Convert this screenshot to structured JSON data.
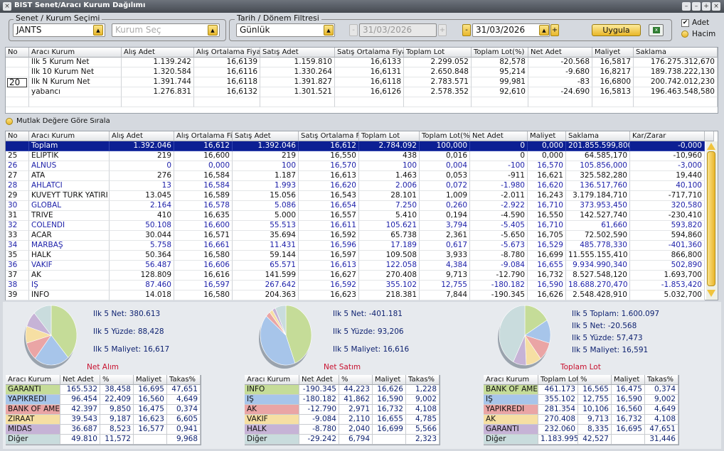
{
  "window": {
    "title": "BIST Senet/Aracı Kurum Dağılımı"
  },
  "filters": {
    "stock_group": "Senet / Kurum Seçimi",
    "stock": "JANTS",
    "broker_placeholder": "Kurum Seç",
    "date_group": "Tarih / Dönem Filtresi",
    "period": "Günlük",
    "start_date": "31/03/2026",
    "end_date": "31/03/2026",
    "apply": "Uygula",
    "mode_options": [
      "Adet",
      "Hacim"
    ]
  },
  "summary_table": {
    "headers": [
      "No",
      "Aracı Kurum",
      "Alış Adet",
      "Alış Ortalama Fiyat",
      "Satış Adet",
      "Satış Ortalama Fiyat",
      "Toplam Lot",
      "Toplam Lot(%)",
      "Net Adet",
      "Maliyet",
      "Saklama"
    ],
    "n_value": "20",
    "rows": [
      [
        "İlk 5 Kurum Net",
        "1.139.242",
        "16,6139",
        "1.159.810",
        "16,6133",
        "2.299.052",
        "82,578",
        "-20.568",
        "16,5817",
        "176.275.312,670"
      ],
      [
        "İlk 10 Kurum Net",
        "1.320.584",
        "16,6116",
        "1.330.264",
        "16,6131",
        "2.650.848",
        "95,214",
        "-9.680",
        "16,8217",
        "189.738.222,130"
      ],
      [
        "İlk N Kurum Net",
        "1.391.744",
        "16,6118",
        "1.391.827",
        "16,6118",
        "2.783.571",
        "99,981",
        "-83",
        "16,6800",
        "200.742.012,230"
      ],
      [
        "yabancı",
        "1.276.831",
        "16,6132",
        "1.301.521",
        "16,6126",
        "2.578.352",
        "92,610",
        "-24.690",
        "16,5813",
        "196.463.548,580"
      ]
    ]
  },
  "sort_option": "Mutlak Değere Göre Sırala",
  "broker_table": {
    "headers": [
      "No",
      "Aracı Kurum",
      "Alış Adet",
      "Alış Ortalama Fiy",
      "Satış Adet",
      "Satış Ortalama Fi",
      "Toplam Lot",
      "Toplam Lot(%",
      "Net Adet",
      "Maliyet",
      "Saklama",
      "Kar/Zarar"
    ],
    "rows": [
      [
        null,
        "Toplam",
        "1.392.046",
        "16,612",
        "1.392.046",
        "16,612",
        "2.784.092",
        "100,000",
        "0",
        "0,000",
        "201.855.599,800",
        "-0,000"
      ],
      [
        "25",
        "ELİPTİK",
        "219",
        "16,600",
        "219",
        "16,550",
        "438",
        "0,016",
        "0",
        "0,000",
        "64.585,170",
        "-10,960"
      ],
      [
        "26",
        "ALNUS",
        "0",
        "0,000",
        "100",
        "16,570",
        "100",
        "0,004",
        "-100",
        "16,570",
        "105.856,000",
        "-3,000"
      ],
      [
        "27",
        "ATA",
        "276",
        "16,584",
        "1.187",
        "16,613",
        "1.463",
        "0,053",
        "-911",
        "16,621",
        "325.582,280",
        "19,440"
      ],
      [
        "28",
        "AHLATCI",
        "13",
        "16,584",
        "1.993",
        "16,620",
        "2.006",
        "0,072",
        "-1.980",
        "16,620",
        "136.517,760",
        "40,100"
      ],
      [
        "29",
        "KUVEYT TÜRK YATIRI",
        "13.045",
        "16,589",
        "15.056",
        "16,543",
        "28.101",
        "1,009",
        "-2.011",
        "16,243",
        "3.179.184,710",
        "-717,710"
      ],
      [
        "30",
        "GLOBAL",
        "2.164",
        "16,578",
        "5.086",
        "16,654",
        "7.250",
        "0,260",
        "-2.922",
        "16,710",
        "373.953,450",
        "320,580"
      ],
      [
        "31",
        "TRIVE",
        "410",
        "16,635",
        "5.000",
        "16,557",
        "5.410",
        "0,194",
        "-4.590",
        "16,550",
        "142.527,740",
        "-230,410"
      ],
      [
        "32",
        "COLENDİ",
        "50.108",
        "16,600",
        "55.513",
        "16,611",
        "105.621",
        "3,794",
        "-5.405",
        "16,710",
        "61,660",
        "593,820"
      ],
      [
        "33",
        "ACAR",
        "30.044",
        "16,571",
        "35.694",
        "16,592",
        "65.738",
        "2,361",
        "-5.650",
        "16,705",
        "72.502,590",
        "594,860"
      ],
      [
        "34",
        "MARBAŞ",
        "5.758",
        "16,661",
        "11.431",
        "16,596",
        "17.189",
        "0,617",
        "-5.673",
        "16,529",
        "485.778,330",
        "-401,360"
      ],
      [
        "35",
        "HALK",
        "50.364",
        "16,580",
        "59.144",
        "16,597",
        "109.508",
        "3,933",
        "-8.780",
        "16,699",
        "11.555.155,410",
        "866,800"
      ],
      [
        "36",
        "VAKIF",
        "56.487",
        "16,606",
        "65.571",
        "16,613",
        "122.058",
        "4,384",
        "-9.084",
        "16,655",
        "9.934.990,340",
        "502,890"
      ],
      [
        "37",
        "AK",
        "128.809",
        "16,616",
        "141.599",
        "16,627",
        "270.408",
        "9,713",
        "-12.790",
        "16,732",
        "8.527.548,120",
        "1.693,700"
      ],
      [
        "38",
        "İŞ",
        "87.460",
        "16,597",
        "267.642",
        "16,592",
        "355.102",
        "12,755",
        "-180.182",
        "16,590",
        "18.688.270,470",
        "-1.853,420"
      ],
      [
        "39",
        "İNFO",
        "14.018",
        "16,580",
        "204.363",
        "16,623",
        "218.381",
        "7,844",
        "-190.345",
        "16,626",
        "2.548.428,910",
        "5.032,700"
      ]
    ]
  },
  "pies": [
    {
      "title": "Net Alım",
      "stats": [
        "Ilk 5 Net: 380.613",
        "Ilk 5 Yüzde: 88,428",
        "Ilk 5 Maliyet: 16,617"
      ],
      "headers": [
        "Aracı Kurum",
        "Net Adet",
        "%",
        "Maliyet",
        "Takas%"
      ],
      "colors": [
        "#c5dc98",
        "#a7c5ea",
        "#eaa5a5",
        "#f6dfa3",
        "#c6b3d6",
        "#c9dcdd"
      ],
      "rows": [
        [
          "GARANTİ",
          "165.532",
          "38,458",
          "16,695",
          "47,651"
        ],
        [
          "YAPIKREDİ",
          "96.454",
          "22,409",
          "16,560",
          "4,649"
        ],
        [
          "BANK OF AME",
          "42.397",
          "9,850",
          "16,475",
          "0,374"
        ],
        [
          "ZİRAAT",
          "39.543",
          "9,187",
          "16,623",
          "6,605"
        ],
        [
          "MİDAS",
          "36.687",
          "8,523",
          "16,577",
          "0,941"
        ],
        [
          "Diğer",
          "49.810",
          "11,572",
          null,
          "9,968"
        ]
      ]
    },
    {
      "title": "Net Satım",
      "stats": [
        "Ilk 5 Net: -401.181",
        "Ilk 5 Yüzde: 93,206",
        "Ilk 5 Maliyet: 16,616"
      ],
      "headers": [
        "Aracı Kurum",
        "Net Adet",
        "%",
        "Maliyet",
        "Takas%"
      ],
      "colors": [
        "#c5dc98",
        "#a7c5ea",
        "#eaa5a5",
        "#f6dfa3",
        "#c6b3d6",
        "#c9dcdd"
      ],
      "rows": [
        [
          "İNFO",
          "-190.345",
          "44,223",
          "16,626",
          "1,228"
        ],
        [
          "İŞ",
          "-180.182",
          "41,862",
          "16,590",
          "9,002"
        ],
        [
          "AK",
          "-12.790",
          "2,971",
          "16,732",
          "4,108"
        ],
        [
          "VAKIF",
          "-9.084",
          "2,110",
          "16,655",
          "4,785"
        ],
        [
          "HALK",
          "-8.780",
          "2,040",
          "16,699",
          "5,566"
        ],
        [
          "Diğer",
          "-29.242",
          "6,794",
          null,
          "2,323"
        ]
      ]
    },
    {
      "title": "Toplam Lot",
      "stats": [
        "Ilk 5 Toplam: 1.600.097",
        "Ilk 5 Net: -20.568",
        "Ilk 5 Yüzde: 57,473",
        "Ilk 5 Maliyet: 16,591"
      ],
      "headers": [
        "Aracı Kurum",
        "Toplam Lot",
        "%",
        "Maliyet",
        "Takas%"
      ],
      "colors": [
        "#c5dc98",
        "#a7c5ea",
        "#eaa5a5",
        "#f6dfa3",
        "#c6b3d6",
        "#c9dcdd"
      ],
      "rows": [
        [
          "BANK OF AME",
          "461.173",
          "16,565",
          "16,475",
          "0,374"
        ],
        [
          "İŞ",
          "355.102",
          "12,755",
          "16,590",
          "9,002"
        ],
        [
          "YAPIKREDİ",
          "281.354",
          "10,106",
          "16,560",
          "4,649"
        ],
        [
          "AK",
          "270.408",
          "9,713",
          "16,732",
          "4,108"
        ],
        [
          "GARANTİ",
          "232.060",
          "8,335",
          "16,695",
          "47,651"
        ],
        [
          "Diğer",
          "1.183.995",
          "42,527",
          null,
          "31,446"
        ]
      ]
    }
  ]
}
